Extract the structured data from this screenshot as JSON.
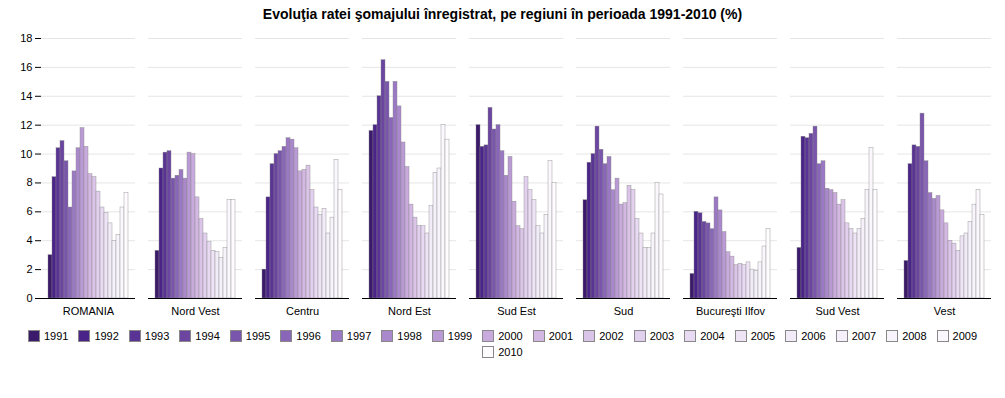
{
  "chart_data": {
    "type": "bar",
    "title": "Evoluţia ratei şomajului înregistrat, pe regiuni în perioada 1991-2010 (%)",
    "categories": [
      "ROMANIA",
      "Nord Vest",
      "Centru",
      "Nord Est",
      "Sud Est",
      "Sud",
      "Bucureşti Ilfov",
      "Sud Vest",
      "Vest"
    ],
    "series": [
      {
        "name": "1991",
        "color": "#3b1a6b",
        "values": [
          3.0,
          3.3,
          2.0,
          11.6,
          12.0,
          6.8,
          1.7,
          3.5,
          2.6
        ]
      },
      {
        "name": "1992",
        "color": "#4a2488",
        "values": [
          8.4,
          9.0,
          7.0,
          12.0,
          10.5,
          9.4,
          6.0,
          11.2,
          9.3
        ]
      },
      {
        "name": "1993",
        "color": "#5a3494",
        "values": [
          10.4,
          10.1,
          9.3,
          14.0,
          10.6,
          10.0,
          5.9,
          11.1,
          10.6
        ]
      },
      {
        "name": "1994",
        "color": "#6b45a0",
        "values": [
          10.9,
          10.2,
          10.0,
          16.5,
          13.2,
          11.9,
          5.3,
          11.4,
          10.5
        ]
      },
      {
        "name": "1995",
        "color": "#7a55ac",
        "values": [
          9.5,
          8.3,
          10.2,
          15.0,
          11.7,
          10.3,
          5.2,
          11.9,
          12.8
        ]
      },
      {
        "name": "1996",
        "color": "#8a66b8",
        "values": [
          6.3,
          8.5,
          10.5,
          12.5,
          12.0,
          9.3,
          4.8,
          9.3,
          9.5
        ]
      },
      {
        "name": "1997",
        "color": "#9a78c4",
        "values": [
          8.8,
          8.9,
          11.1,
          15.0,
          10.2,
          9.8,
          7.0,
          9.5,
          7.3
        ]
      },
      {
        "name": "1998",
        "color": "#aa88cc",
        "values": [
          10.4,
          8.3,
          11.0,
          13.3,
          8.5,
          7.5,
          6.1,
          7.6,
          6.9
        ]
      },
      {
        "name": "1999",
        "color": "#ba9ad4",
        "values": [
          11.8,
          10.1,
          10.4,
          10.8,
          9.8,
          8.3,
          4.6,
          7.5,
          7.1
        ]
      },
      {
        "name": "2000",
        "color": "#c8aadc",
        "values": [
          10.5,
          10.0,
          8.8,
          9.1,
          6.7,
          6.5,
          3.2,
          7.3,
          6.1
        ]
      },
      {
        "name": "2001",
        "color": "#d2b8e2",
        "values": [
          8.6,
          7.0,
          8.9,
          6.5,
          5.0,
          6.6,
          2.9,
          6.5,
          5.2
        ]
      },
      {
        "name": "2002",
        "color": "#dac4e8",
        "values": [
          8.4,
          5.5,
          9.2,
          5.6,
          4.8,
          7.8,
          2.3,
          6.8,
          4.0
        ]
      },
      {
        "name": "2003",
        "color": "#e2d0ee",
        "values": [
          7.4,
          4.5,
          7.5,
          5.0,
          8.4,
          7.5,
          2.4,
          5.2,
          3.8
        ]
      },
      {
        "name": "2004",
        "color": "#e8daf2",
        "values": [
          6.3,
          3.9,
          6.3,
          5.0,
          7.5,
          5.5,
          2.3,
          4.8,
          3.3
        ]
      },
      {
        "name": "2005",
        "color": "#eee4f6",
        "values": [
          5.9,
          3.3,
          5.8,
          4.5,
          6.8,
          4.5,
          2.5,
          4.5,
          4.3
        ]
      },
      {
        "name": "2006",
        "color": "#f2ecf8",
        "values": [
          5.2,
          3.2,
          6.2,
          6.4,
          5.0,
          3.5,
          2.0,
          4.8,
          4.5
        ]
      },
      {
        "name": "2007",
        "color": "#f5f0fa",
        "values": [
          4.0,
          2.8,
          4.5,
          8.7,
          4.5,
          3.5,
          1.9,
          5.5,
          5.3
        ]
      },
      {
        "name": "2008",
        "color": "#f8f4fc",
        "values": [
          4.4,
          3.5,
          5.6,
          9.0,
          5.8,
          4.5,
          2.5,
          7.5,
          6.5
        ]
      },
      {
        "name": "2009",
        "color": "#fbf8fd",
        "values": [
          6.3,
          6.8,
          9.6,
          12.0,
          9.5,
          8.0,
          3.6,
          10.4,
          7.5
        ]
      },
      {
        "name": "2010",
        "color": "#fefcff",
        "values": [
          7.3,
          6.8,
          7.5,
          11.0,
          8.0,
          7.2,
          4.8,
          7.5,
          5.8
        ]
      }
    ],
    "ylim": [
      0,
      18
    ],
    "yticks": [
      0,
      2,
      4,
      6,
      8,
      10,
      12,
      14,
      16,
      18
    ],
    "grid": true,
    "legend": "bottom"
  }
}
